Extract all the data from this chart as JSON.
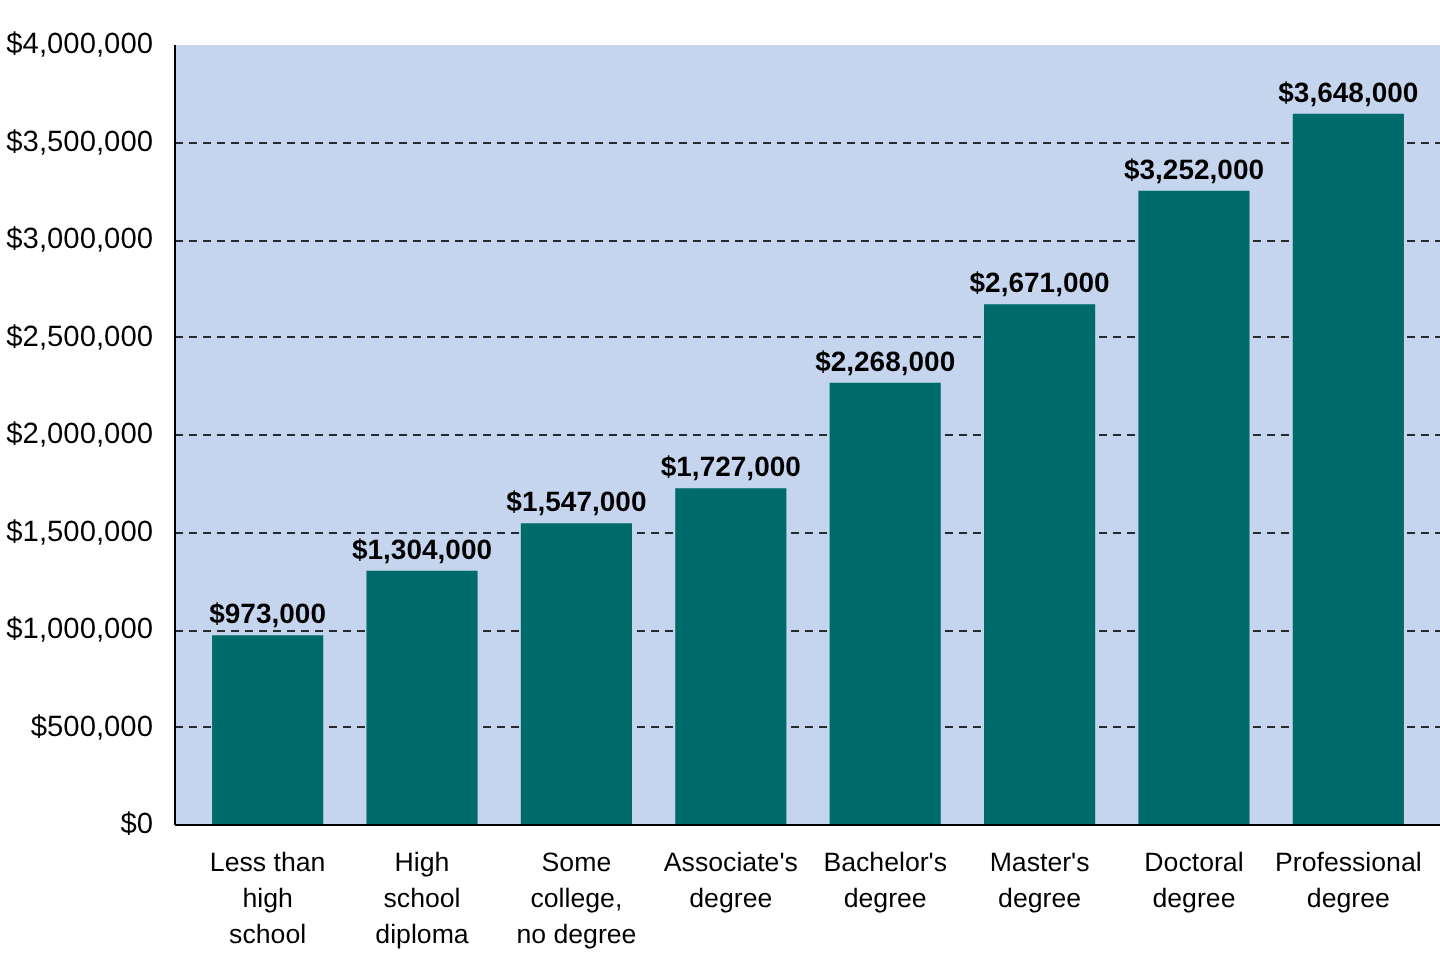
{
  "chart_data": {
    "type": "bar",
    "categories": [
      "Less than high school",
      "High school diploma",
      "Some college, no degree",
      "Associate's degree",
      "Bachelor's degree",
      "Master's degree",
      "Doctoral degree",
      "Professional degree"
    ],
    "values": [
      973000,
      1304000,
      1547000,
      1727000,
      2268000,
      2671000,
      3252000,
      3648000
    ],
    "color": "#006b6b",
    "ylim": [
      0,
      4000000
    ],
    "yticks": [
      {
        "value": 0,
        "label": "$0"
      },
      {
        "value": 500000,
        "label": "$500,000"
      },
      {
        "value": 1000000,
        "label": "$1,000,000"
      },
      {
        "value": 1500000,
        "label": "$1,500,000"
      },
      {
        "value": 2000000,
        "label": "$2,000,000"
      },
      {
        "value": 2500000,
        "label": "$2,500,000"
      },
      {
        "value": 3000000,
        "label": "$3,000,000"
      },
      {
        "value": 3500000,
        "label": "$3,500,000"
      },
      {
        "value": 4000000,
        "label": "$4,000,000"
      }
    ],
    "value_labels": [
      "$973,000",
      "$1,304,000",
      "$1,547,000",
      "$1,727,000",
      "$2,268,000",
      "$2,671,000",
      "$3,252,000",
      "$3,648,000"
    ],
    "grid": "y"
  }
}
